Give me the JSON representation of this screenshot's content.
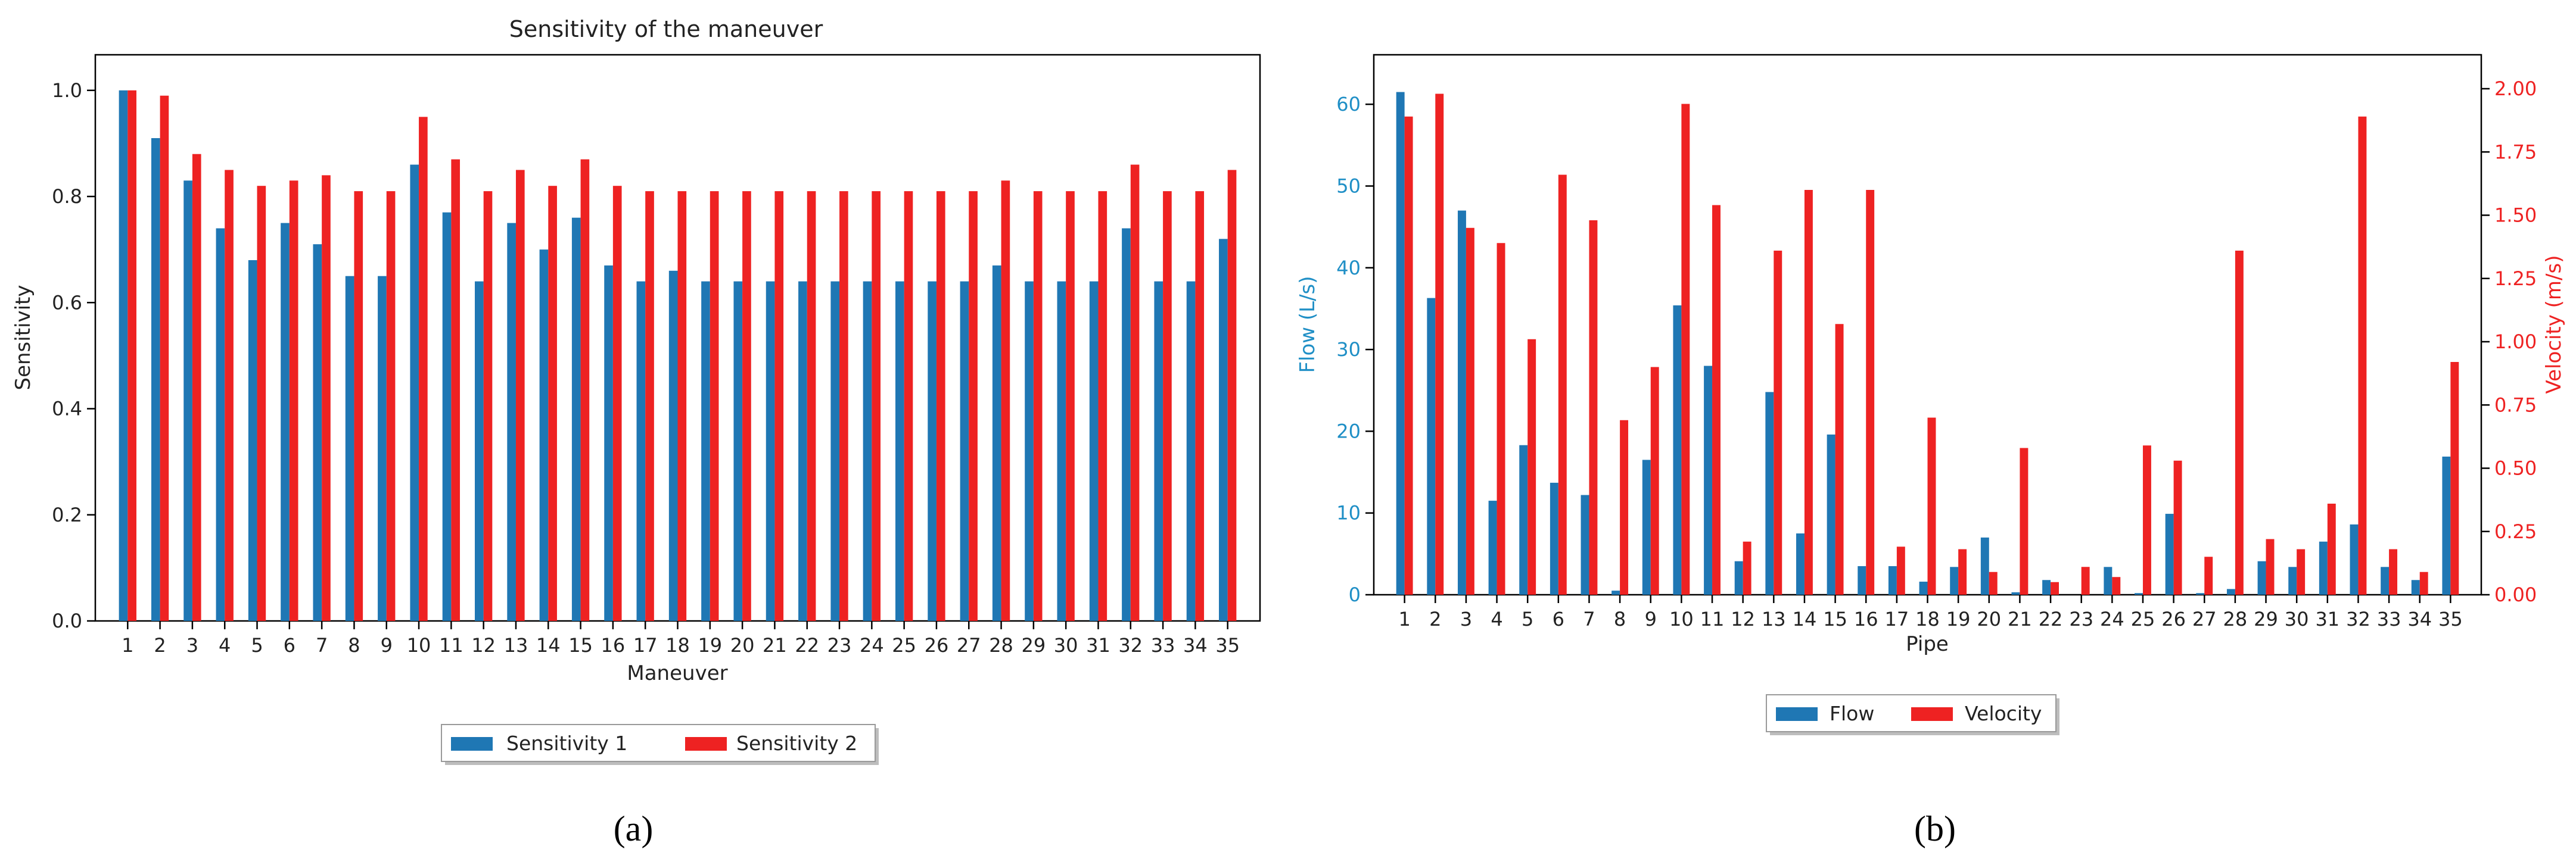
{
  "panels": {
    "a": {
      "caption": "(a)",
      "legend_labels": [
        "Sensitivity 1",
        "Sensitivity 2"
      ]
    },
    "b": {
      "caption": "(b)",
      "legend_labels": [
        "Flow",
        "Velocity"
      ]
    }
  },
  "colors": {
    "blue": "#1f77b4",
    "red": "#ee2222",
    "axis_left_b": "#1f8fc6",
    "axis_right_b": "#ee2222",
    "text": "#222222"
  },
  "chart_data": [
    {
      "type": "bar",
      "title": "Sensitivity of the maneuver",
      "xlabel": "Maneuver",
      "ylabel": "Sensitivity",
      "ylim": [
        0,
        1.05
      ],
      "yticks": [
        "0.0",
        "0.2",
        "0.4",
        "0.6",
        "0.8",
        "1.0"
      ],
      "grid": false,
      "legend_placement": "below",
      "categories": [
        "1",
        "2",
        "3",
        "4",
        "5",
        "6",
        "7",
        "8",
        "9",
        "10",
        "11",
        "12",
        "13",
        "14",
        "15",
        "16",
        "17",
        "18",
        "19",
        "20",
        "21",
        "22",
        "23",
        "24",
        "25",
        "26",
        "27",
        "28",
        "29",
        "30",
        "31",
        "32",
        "33",
        "34",
        "35"
      ],
      "series": [
        {
          "name": "Sensitivity 1",
          "values": [
            1.0,
            0.91,
            0.83,
            0.74,
            0.68,
            0.75,
            0.71,
            0.65,
            0.65,
            0.86,
            0.77,
            0.64,
            0.75,
            0.7,
            0.76,
            0.67,
            0.64,
            0.66,
            0.64,
            0.64,
            0.64,
            0.64,
            0.64,
            0.64,
            0.64,
            0.64,
            0.64,
            0.67,
            0.64,
            0.64,
            0.64,
            0.74,
            0.64,
            0.64,
            0.72
          ]
        },
        {
          "name": "Sensitivity 2",
          "values": [
            1.0,
            0.99,
            0.88,
            0.85,
            0.82,
            0.83,
            0.84,
            0.81,
            0.81,
            0.95,
            0.87,
            0.81,
            0.85,
            0.82,
            0.87,
            0.82,
            0.81,
            0.81,
            0.81,
            0.81,
            0.81,
            0.81,
            0.81,
            0.81,
            0.81,
            0.81,
            0.81,
            0.83,
            0.81,
            0.81,
            0.81,
            0.86,
            0.81,
            0.81,
            0.85
          ]
        }
      ]
    },
    {
      "type": "bar",
      "title": "",
      "xlabel": "Pipe",
      "ylabel": "Flow (L/s)",
      "y2label": "Velocity (m/s)",
      "ylim": [
        0,
        65
      ],
      "y2lim": [
        0,
        2.1
      ],
      "yticks": [
        "0",
        "10",
        "20",
        "30",
        "40",
        "50",
        "60"
      ],
      "y2ticks": [
        "0.00",
        "0.25",
        "0.50",
        "0.75",
        "1.00",
        "1.25",
        "1.50",
        "1.75",
        "2.00"
      ],
      "grid": false,
      "legend_placement": "below",
      "categories": [
        "1",
        "2",
        "3",
        "4",
        "5",
        "6",
        "7",
        "8",
        "9",
        "10",
        "11",
        "12",
        "13",
        "14",
        "15",
        "16",
        "17",
        "18",
        "19",
        "20",
        "21",
        "22",
        "23",
        "24",
        "25",
        "26",
        "27",
        "28",
        "29",
        "30",
        "31",
        "32",
        "33",
        "34",
        "35"
      ],
      "series": [
        {
          "name": "Flow",
          "axis": "left",
          "values": [
            61.5,
            36.3,
            47.0,
            11.5,
            18.3,
            13.7,
            12.2,
            0.5,
            16.5,
            35.4,
            28.0,
            4.1,
            24.8,
            7.5,
            19.6,
            3.5,
            3.5,
            1.6,
            3.4,
            7.0,
            0.3,
            1.8,
            0.0,
            3.4,
            0.2,
            9.9,
            0.2,
            0.7,
            4.1,
            3.4,
            6.5,
            8.6,
            3.4,
            1.8,
            16.9
          ]
        },
        {
          "name": "Velocity",
          "axis": "right",
          "values": [
            1.89,
            1.98,
            1.45,
            1.39,
            1.01,
            1.66,
            1.48,
            0.69,
            0.9,
            1.94,
            1.54,
            0.21,
            1.36,
            1.6,
            1.07,
            1.6,
            0.19,
            0.7,
            0.18,
            0.09,
            0.58,
            0.05,
            0.11,
            0.07,
            0.59,
            0.53,
            0.15,
            1.36,
            0.22,
            0.18,
            0.36,
            1.89,
            0.18,
            0.09,
            0.92
          ]
        }
      ]
    }
  ]
}
